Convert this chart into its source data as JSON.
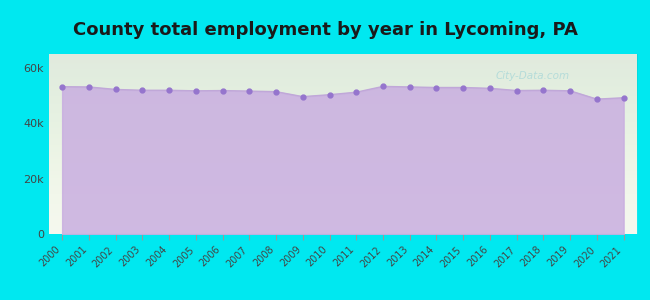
{
  "title": "County total employment by year in Lycoming, PA",
  "years": [
    2000,
    2001,
    2002,
    2003,
    2004,
    2005,
    2006,
    2007,
    2008,
    2009,
    2010,
    2011,
    2012,
    2013,
    2014,
    2015,
    2016,
    2017,
    2018,
    2019,
    2020,
    2021
  ],
  "values": [
    53200,
    53100,
    52200,
    51900,
    51900,
    51700,
    51800,
    51600,
    51400,
    49600,
    50300,
    51200,
    53300,
    53100,
    52900,
    52900,
    52600,
    51800,
    51900,
    51700,
    48700,
    49200
  ],
  "line_color": "#c0a8d8",
  "fill_color": "#c9aee0",
  "fill_alpha": 0.85,
  "marker_color": "#9575cd",
  "marker_size": 3.5,
  "background_outer": "#00e8f0",
  "background_inner_top": "#f5f8ee",
  "background_inner_bottom": "#e8f0e0",
  "title_fontsize": 13,
  "title_fontweight": "bold",
  "ylim": [
    0,
    65000
  ],
  "yticks": [
    0,
    20000,
    40000,
    60000
  ],
  "ytick_labels": [
    "0",
    "20k",
    "40k",
    "60k"
  ]
}
